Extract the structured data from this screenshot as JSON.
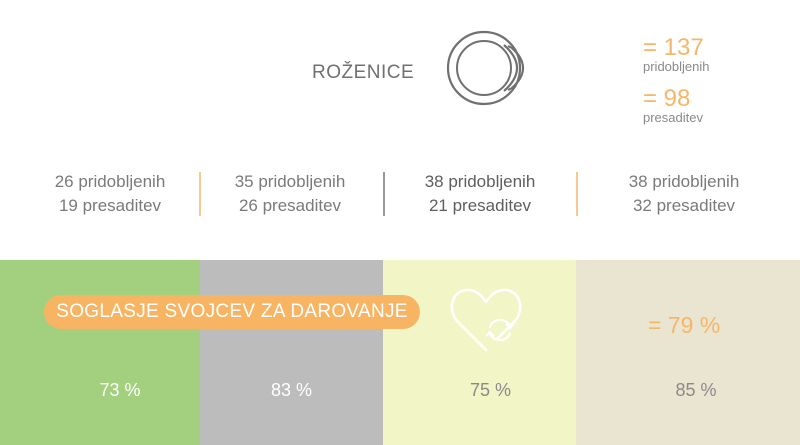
{
  "header": {
    "title": "ROŽENICE",
    "totals": [
      {
        "value": "= 137",
        "label": "pridobljenih"
      },
      {
        "value": "= 98",
        "label": "presaditev"
      }
    ]
  },
  "stats": [
    {
      "line1": "26 pridobljenih",
      "line2": "19 presaditev"
    },
    {
      "line1": "35 pridobljenih",
      "line2": "26 presaditev"
    },
    {
      "line1": "38 pridobljenih",
      "line2": "21 presaditev"
    },
    {
      "line1": "38 pridobljenih",
      "line2": "32 presaditev"
    }
  ],
  "consent": {
    "label": "SOGLASJE SVOJCEV ZA DAROVANJE",
    "total": "= 79 %",
    "panels": [
      {
        "value": "73 %",
        "color": "#a3d07f",
        "text_color": "#ffffff"
      },
      {
        "value": "83 %",
        "color": "#bcbcbc",
        "text_color": "#ffffff"
      },
      {
        "value": "75 %",
        "color": "#f2f5c6",
        "text_color": "#8a8a8a"
      },
      {
        "value": "85 %",
        "color": "#e9e5d0",
        "text_color": "#8a8a8a"
      }
    ]
  },
  "colors": {
    "accent": "#f7b463",
    "separator_orange": "#f7c98e",
    "separator_gray": "#9a9a9a"
  },
  "icons": {
    "header": "eye-icon",
    "consent": "heart-icon"
  }
}
